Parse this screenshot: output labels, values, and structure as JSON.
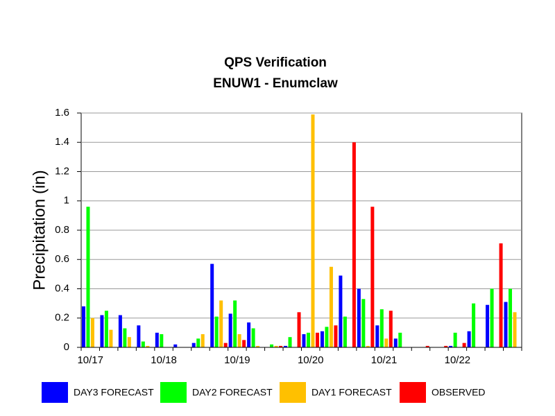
{
  "chart_data": {
    "type": "bar",
    "title": "QPS Verification",
    "subtitle": "ENUW1 - Enumclaw",
    "y_label": "Precipitation (in)",
    "categories": [
      "10/17",
      null,
      null,
      null,
      "10/18",
      null,
      null,
      null,
      "10/19",
      null,
      null,
      null,
      "10/20",
      null,
      null,
      null,
      "10/21",
      null,
      null,
      null,
      "10/22",
      null,
      null,
      null
    ],
    "series": [
      {
        "name": "DAY3 FORECAST",
        "color": "#0000ff",
        "values": [
          0.28,
          0.22,
          0.22,
          0.15,
          0.1,
          0.02,
          0.03,
          0.57,
          0.23,
          0.17,
          0,
          0.01,
          0.09,
          0.11,
          0.49,
          0.4,
          0.15,
          0.06,
          0,
          0,
          0.01,
          0.11,
          0.29,
          0.31
        ]
      },
      {
        "name": "DAY2 FORECAST",
        "color": "#00ff00",
        "values": [
          0.96,
          0.25,
          0.13,
          0.04,
          0.09,
          0,
          0.06,
          0.21,
          0.32,
          0.13,
          0.02,
          0.07,
          0.1,
          0.14,
          0.21,
          0.33,
          0.26,
          0.1,
          0,
          0,
          0.1,
          0.3,
          0.4,
          0.4
        ]
      },
      {
        "name": "DAY1 FORECAST",
        "color": "#ffc000",
        "values": [
          0.2,
          0.12,
          0.07,
          0.01,
          0,
          0,
          0.09,
          0.32,
          0.09,
          0.01,
          0.01,
          0,
          1.59,
          0.55,
          0,
          0.01,
          0.06,
          0,
          0,
          0,
          0,
          0,
          0,
          0.24
        ]
      },
      {
        "name": "OBSERVED",
        "color": "#ff0000",
        "values": [
          0,
          0,
          0,
          0,
          0,
          0,
          0,
          0.03,
          0.05,
          0,
          0.01,
          0.24,
          0.1,
          0.15,
          1.4,
          0.96,
          0.25,
          0,
          0.01,
          0.01,
          0.03,
          0,
          0.71,
          0
        ]
      }
    ],
    "ylim": [
      0,
      1.6
    ],
    "yticks": [
      0,
      0.2,
      0.4,
      0.6,
      0.8,
      1,
      1.2,
      1.4,
      1.6
    ],
    "grid": true,
    "legend": "bottom"
  }
}
